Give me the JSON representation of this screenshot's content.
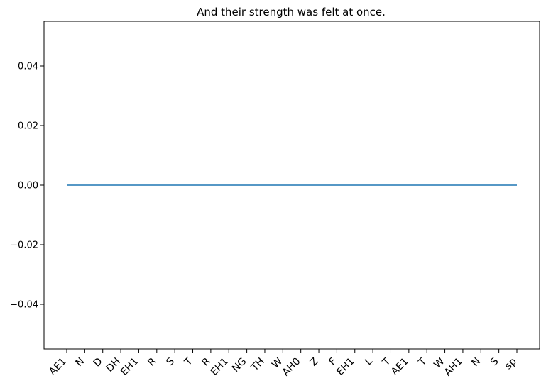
{
  "chart_data": {
    "type": "line",
    "title": "And their strength was felt at once.",
    "xlabel": "",
    "ylabel": "",
    "categories": [
      "AE1",
      "N",
      "D",
      "DH",
      "EH1",
      "R",
      "S",
      "T",
      "R",
      "EH1",
      "NG",
      "TH",
      "W",
      "AH0",
      "Z",
      "F",
      "EH1",
      "L",
      "T",
      "AE1",
      "T",
      "W",
      "AH1",
      "N",
      "S",
      "sp"
    ],
    "series": [
      {
        "values": [
          0,
          0,
          0,
          0,
          0,
          0,
          0,
          0,
          0,
          0,
          0,
          0,
          0,
          0,
          0,
          0,
          0,
          0,
          0,
          0,
          0,
          0,
          0,
          0,
          0,
          0
        ]
      }
    ],
    "ylim": [
      -0.055,
      0.055
    ],
    "yticks": [
      "0.04",
      "0.02",
      "0.00",
      "−0.02",
      "−0.04"
    ],
    "ytick_values": [
      0.04,
      0.02,
      0.0,
      -0.02,
      -0.04
    ],
    "grid": false,
    "line_color": "#1f77b4"
  }
}
